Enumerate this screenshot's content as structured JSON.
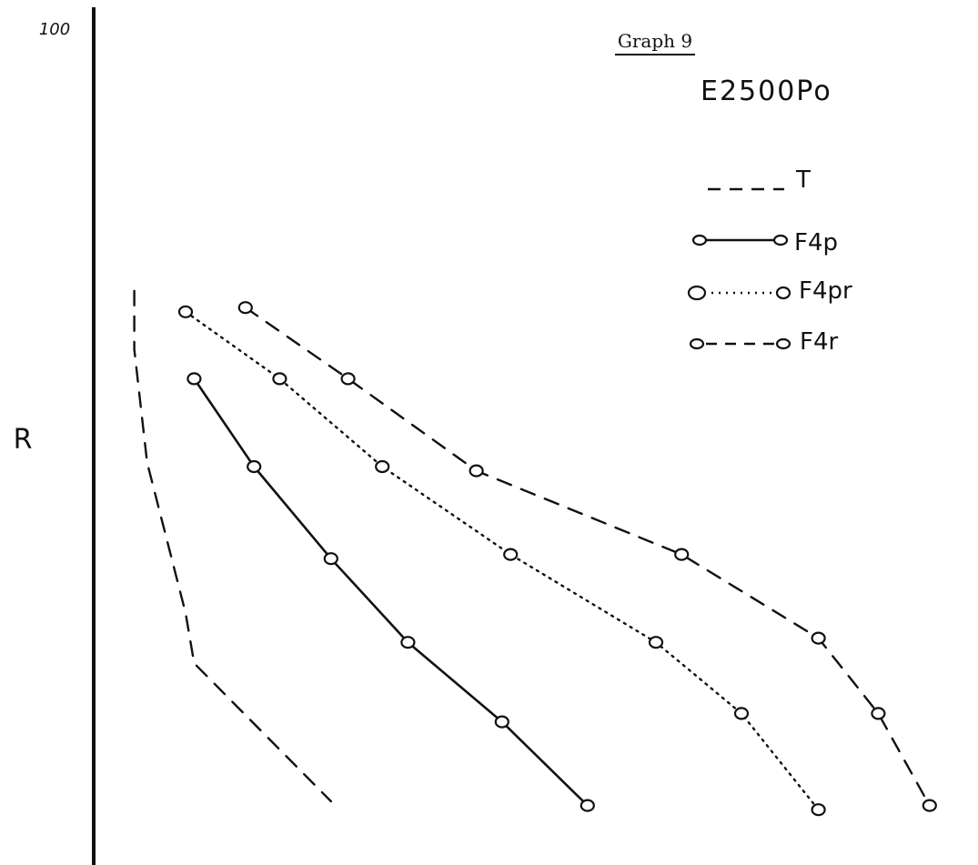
{
  "chart_data": {
    "type": "line",
    "title": "Graph 9",
    "subtitle": "E2500Po",
    "ylabel": "R",
    "y_tick_labels": [
      "100"
    ],
    "ylim": [
      0,
      100
    ],
    "xlim": [
      0,
      100
    ],
    "x_tick_labels": [],
    "grid": false,
    "legend_position": "top-right",
    "series": [
      {
        "name": "T",
        "style": "dashed",
        "markers": false,
        "points": [
          [
            4,
            68.5
          ],
          [
            4,
            61.5
          ],
          [
            5.5,
            48
          ],
          [
            10,
            30
          ],
          [
            11,
            24
          ],
          [
            27,
            7.5
          ]
        ]
      },
      {
        "name": "F4p",
        "style": "solid",
        "markers": true,
        "points": [
          [
            11,
            58
          ],
          [
            18,
            47.5
          ],
          [
            27,
            36.5
          ],
          [
            36,
            26.5
          ],
          [
            47,
            17
          ],
          [
            57,
            7
          ]
        ]
      },
      {
        "name": "F4pr",
        "style": "dotted",
        "markers": true,
        "points": [
          [
            10,
            66
          ],
          [
            21,
            58
          ],
          [
            33,
            47.5
          ],
          [
            48,
            37
          ],
          [
            65,
            26.5
          ],
          [
            75,
            18
          ],
          [
            84,
            6.5
          ]
        ]
      },
      {
        "name": "F4r",
        "style": "dashed",
        "markers": true,
        "points": [
          [
            17,
            66.5
          ],
          [
            29,
            58
          ],
          [
            44,
            47
          ],
          [
            68,
            37
          ],
          [
            84,
            27
          ],
          [
            91,
            18
          ],
          [
            97,
            7
          ]
        ]
      }
    ]
  }
}
